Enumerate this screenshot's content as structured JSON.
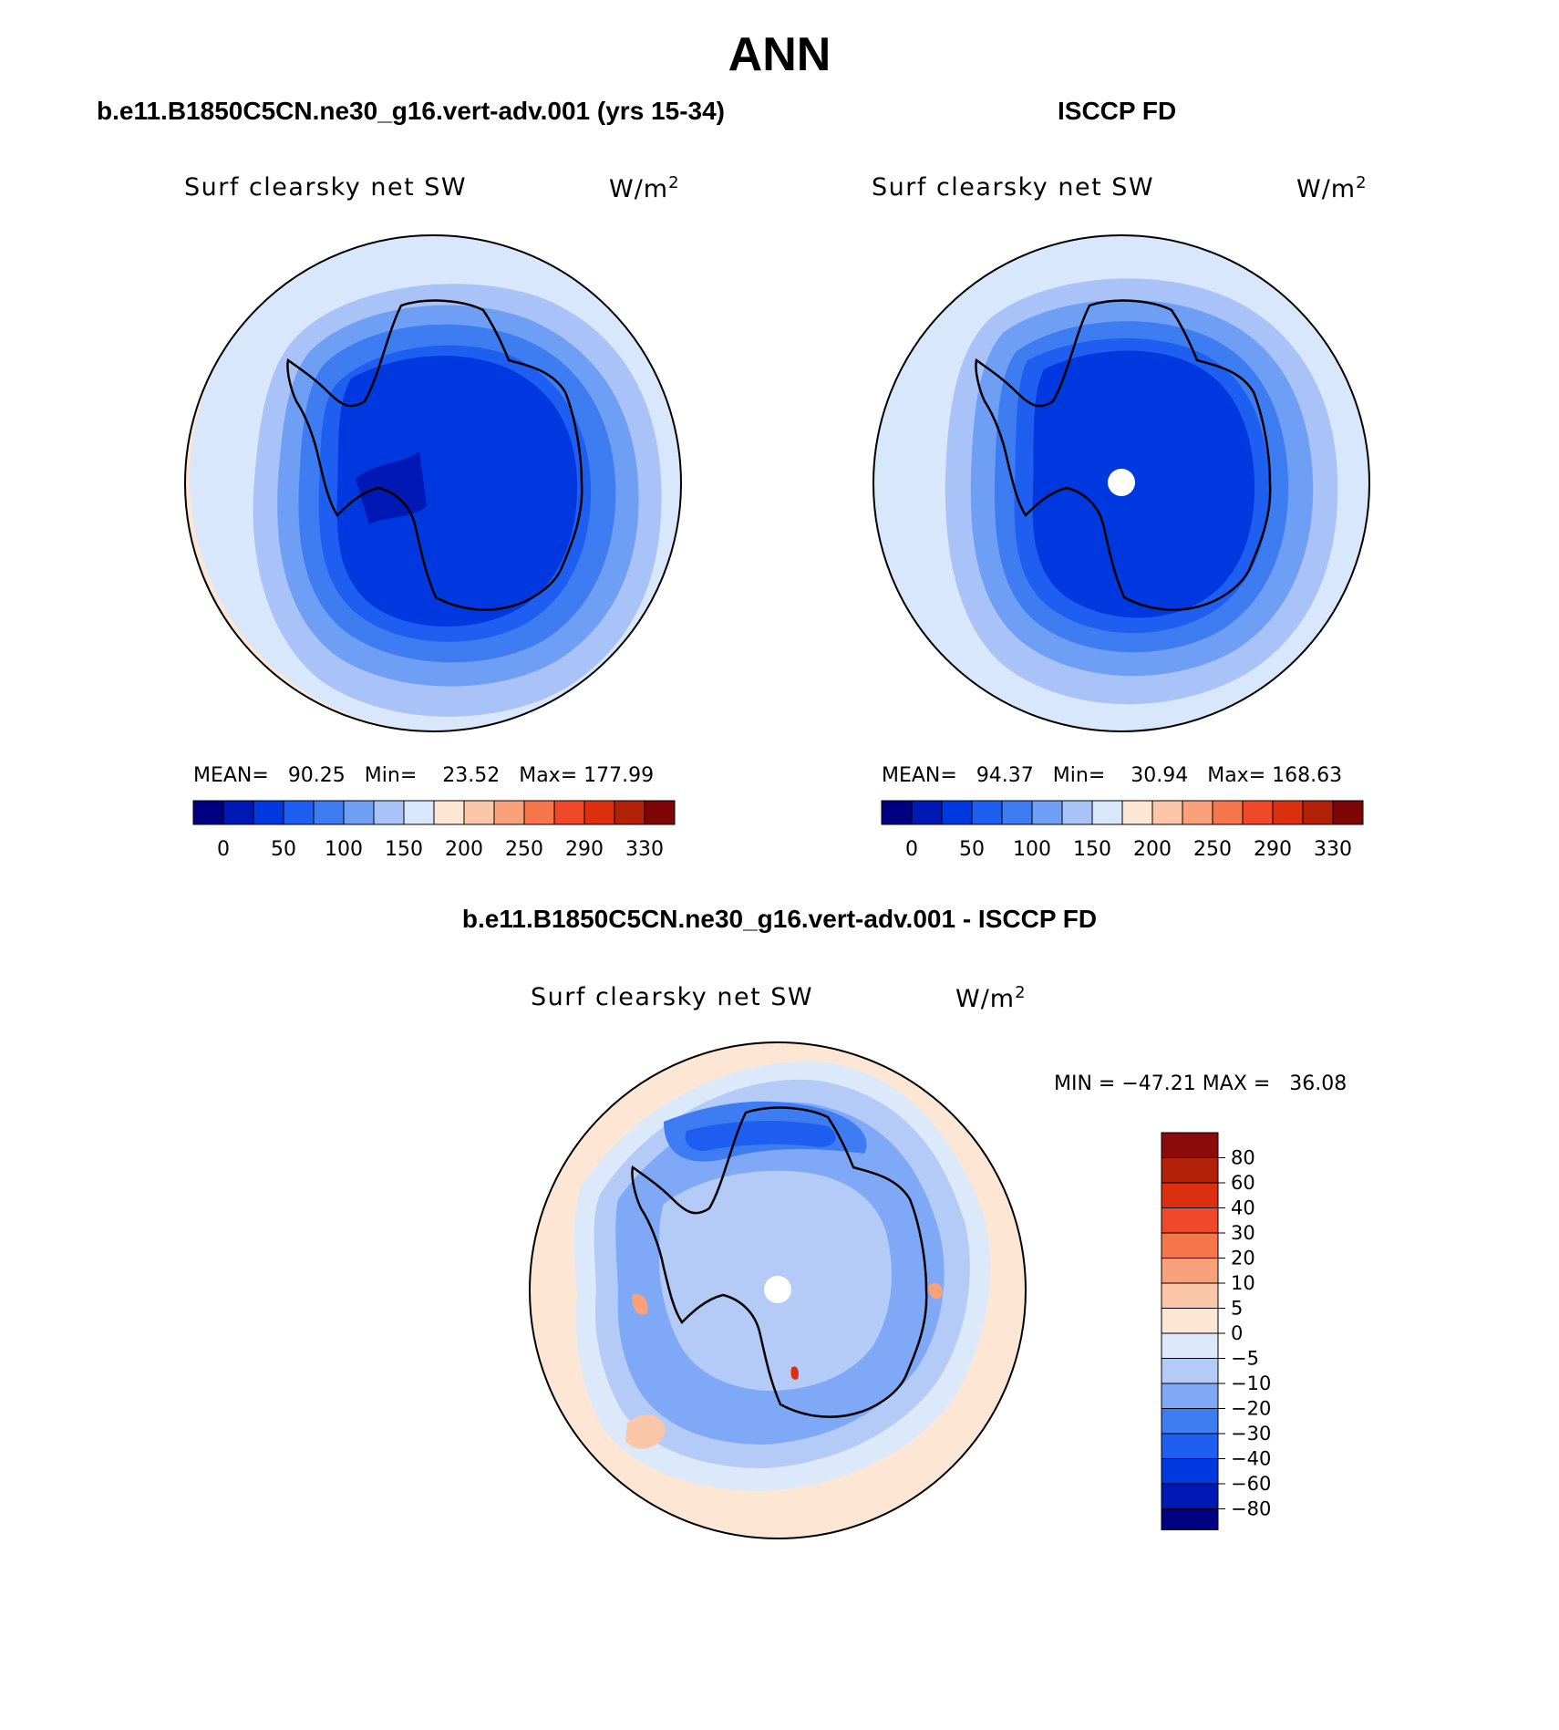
{
  "main_title": "ANN",
  "colors": {
    "abs_scale": [
      "#000080",
      "#0019b4",
      "#0038e0",
      "#1e5ef0",
      "#3e7cf2",
      "#6f9ef5",
      "#a9c3f8",
      "#d8e7fb",
      "#fde6d4",
      "#fcc6a9",
      "#f9a17a",
      "#f5764a",
      "#f0492a",
      "#db2f10",
      "#b32008",
      "#7d0505"
    ],
    "diff_scale": [
      "#000080",
      "#0019b4",
      "#0038e0",
      "#1e5ef0",
      "#3e7cf2",
      "#7fa8f6",
      "#b4cbf8",
      "#dce9fb",
      "#fde6d4",
      "#fcc6a9",
      "#f9a17a",
      "#f5764a",
      "#f0492a",
      "#db2f10",
      "#b32008",
      "#8b0a0a"
    ]
  },
  "chart_data": [
    {
      "type": "heatmap",
      "projection": "south-polar-stereographic",
      "panel_title": "b.e11.B1850C5CN.ne30_g16.vert-adv.001 (yrs 15-34)",
      "variable": "Surf clearsky net SW",
      "units": "W/m",
      "units_exp": "2",
      "stats": {
        "mean_label": "MEAN=",
        "mean": "90.25",
        "min_label": "Min=",
        "min": "23.52",
        "max_label": "Max=",
        "max": "177.99"
      },
      "levels": [
        "0",
        "50",
        "100",
        "150",
        "200",
        "250",
        "290",
        "330"
      ],
      "legend": "bottom-horizontal"
    },
    {
      "type": "heatmap",
      "projection": "south-polar-stereographic",
      "panel_title": "ISCCP FD",
      "variable": "Surf clearsky net SW",
      "units": "W/m",
      "units_exp": "2",
      "stats": {
        "mean_label": "MEAN=",
        "mean": "94.37",
        "min_label": "Min=",
        "min": "30.94",
        "max_label": "Max=",
        "max": "168.63"
      },
      "levels": [
        "0",
        "50",
        "100",
        "150",
        "200",
        "250",
        "290",
        "330"
      ],
      "legend": "bottom-horizontal"
    },
    {
      "type": "heatmap",
      "projection": "south-polar-stereographic",
      "panel_title": "b.e11.B1850C5CN.ne30_g16.vert-adv.001 - ISCCP FD",
      "variable": "Surf clearsky net SW",
      "units": "W/m",
      "units_exp": "2",
      "stats": {
        "min_label": "MIN =",
        "min": "−47.21",
        "max_label": "MAX =",
        "max": "36.08"
      },
      "levels": [
        "80",
        "60",
        "40",
        "30",
        "20",
        "10",
        "5",
        "0",
        "−5",
        "−10",
        "−20",
        "−30",
        "−40",
        "−60",
        "−80"
      ],
      "legend": "right-vertical"
    }
  ]
}
